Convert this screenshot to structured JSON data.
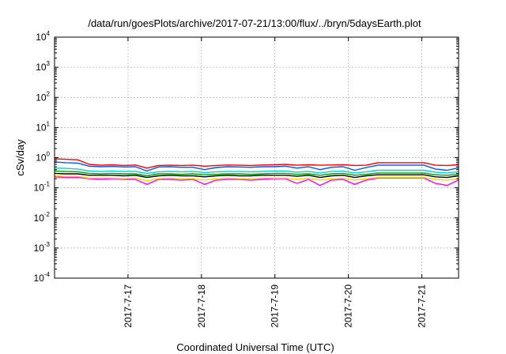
{
  "chart_data": {
    "type": "line",
    "title": "/data/run/goesPlots/archive/2017-07-21/13:00/flux/../bryn/5daysEarth.plot",
    "xlabel": "Coordinated Universal Time (UTC)",
    "ylabel": "cSv/day",
    "yscale": "log",
    "ylim": [
      0.0001,
      10000
    ],
    "xlim_days": [
      0,
      5.5
    ],
    "grid": true,
    "y_ticks": [
      {
        "base": "10",
        "exp": "-4",
        "value": 0.0001
      },
      {
        "base": "10",
        "exp": "-3",
        "value": 0.001
      },
      {
        "base": "10",
        "exp": "-2",
        "value": 0.01
      },
      {
        "base": "10",
        "exp": "-1",
        "value": 0.1
      },
      {
        "base": "10",
        "exp": "0",
        "value": 1
      },
      {
        "base": "10",
        "exp": "1",
        "value": 10
      },
      {
        "base": "10",
        "exp": "2",
        "value": 100
      },
      {
        "base": "10",
        "exp": "3",
        "value": 1000
      },
      {
        "base": "10",
        "exp": "4",
        "value": 10000
      }
    ],
    "x_ticks": [
      {
        "label": "2017-7-17",
        "day": 1
      },
      {
        "label": "2017-7-18",
        "day": 2
      },
      {
        "label": "2017-7-19",
        "day": 3
      },
      {
        "label": "2017-7-20",
        "day": 4
      },
      {
        "label": "2017-7-21",
        "day": 5
      }
    ],
    "series": [
      {
        "color": "#ff0000",
        "values": [
          0.92,
          0.88,
          0.85,
          0.6,
          0.56,
          0.58,
          0.55,
          0.57,
          0.45,
          0.55,
          0.56,
          0.55,
          0.56,
          0.52,
          0.55,
          0.57,
          0.56,
          0.55,
          0.57,
          0.58,
          0.6,
          0.56,
          0.58,
          0.56,
          0.57,
          0.58,
          0.55,
          0.56,
          0.68,
          0.68,
          0.68,
          0.68,
          0.68,
          0.56,
          0.55,
          0.58
        ]
      },
      {
        "color": "#0055ff",
        "values": [
          0.72,
          0.68,
          0.66,
          0.52,
          0.5,
          0.51,
          0.49,
          0.5,
          0.36,
          0.49,
          0.5,
          0.48,
          0.48,
          0.4,
          0.47,
          0.5,
          0.49,
          0.48,
          0.5,
          0.5,
          0.52,
          0.45,
          0.5,
          0.4,
          0.48,
          0.5,
          0.38,
          0.47,
          0.56,
          0.56,
          0.56,
          0.56,
          0.56,
          0.42,
          0.38,
          0.46
        ]
      },
      {
        "color": "#00d4c8",
        "values": [
          0.45,
          0.44,
          0.42,
          0.36,
          0.35,
          0.36,
          0.35,
          0.35,
          0.3,
          0.34,
          0.35,
          0.34,
          0.35,
          0.32,
          0.34,
          0.35,
          0.35,
          0.34,
          0.35,
          0.36,
          0.36,
          0.33,
          0.35,
          0.31,
          0.35,
          0.36,
          0.31,
          0.34,
          0.38,
          0.38,
          0.38,
          0.38,
          0.38,
          0.33,
          0.31,
          0.34
        ]
      },
      {
        "color": "#00a000",
        "values": [
          0.36,
          0.35,
          0.34,
          0.3,
          0.29,
          0.3,
          0.29,
          0.29,
          0.25,
          0.29,
          0.29,
          0.28,
          0.29,
          0.27,
          0.28,
          0.29,
          0.29,
          0.28,
          0.29,
          0.3,
          0.3,
          0.28,
          0.29,
          0.26,
          0.29,
          0.3,
          0.26,
          0.28,
          0.31,
          0.31,
          0.31,
          0.31,
          0.31,
          0.27,
          0.26,
          0.28
        ]
      },
      {
        "color": "#000000",
        "values": [
          0.3,
          0.29,
          0.29,
          0.26,
          0.26,
          0.26,
          0.25,
          0.26,
          0.22,
          0.25,
          0.26,
          0.25,
          0.25,
          0.23,
          0.25,
          0.26,
          0.25,
          0.25,
          0.26,
          0.26,
          0.26,
          0.24,
          0.26,
          0.22,
          0.25,
          0.26,
          0.22,
          0.25,
          0.27,
          0.27,
          0.27,
          0.27,
          0.27,
          0.23,
          0.22,
          0.25
        ]
      },
      {
        "color": "#ff00ff",
        "values": [
          0.23,
          0.22,
          0.22,
          0.2,
          0.19,
          0.2,
          0.19,
          0.19,
          0.13,
          0.19,
          0.19,
          0.18,
          0.19,
          0.13,
          0.18,
          0.19,
          0.19,
          0.18,
          0.19,
          0.2,
          0.2,
          0.14,
          0.19,
          0.12,
          0.18,
          0.19,
          0.13,
          0.18,
          0.21,
          0.21,
          0.21,
          0.21,
          0.21,
          0.14,
          0.12,
          0.18
        ]
      },
      {
        "color": "#ffd700",
        "values": [
          0.25,
          0.24,
          0.24,
          0.21,
          0.21,
          0.21,
          0.2,
          0.21,
          0.17,
          0.2,
          0.21,
          0.2,
          0.2,
          0.18,
          0.2,
          0.21,
          0.2,
          0.2,
          0.21,
          0.21,
          0.21,
          0.19,
          0.21,
          0.18,
          0.2,
          0.21,
          0.18,
          0.2,
          0.22,
          0.22,
          0.22,
          0.22,
          0.22,
          0.19,
          0.18,
          0.2
        ]
      }
    ]
  }
}
